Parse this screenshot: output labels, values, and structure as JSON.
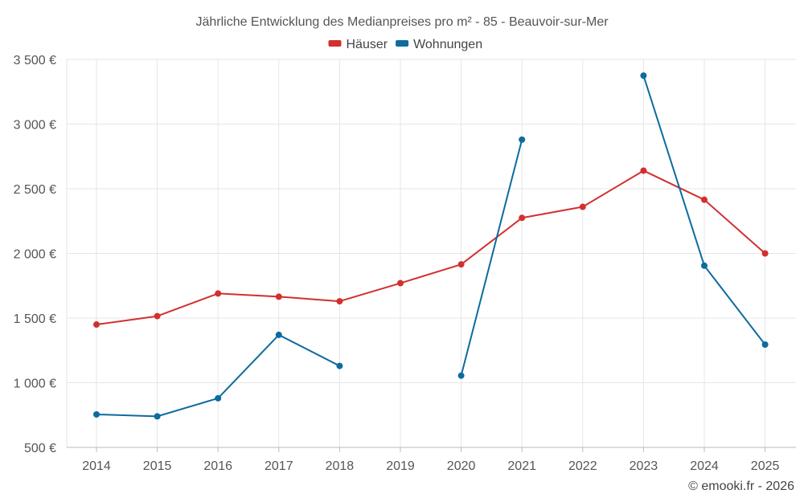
{
  "chart_data": {
    "type": "line",
    "title": "Jährliche Entwicklung des Medianpreises pro m² - 85 - Beauvoir-sur-Mer",
    "categories": [
      "2014",
      "2015",
      "2016",
      "2017",
      "2018",
      "2019",
      "2020",
      "2021",
      "2022",
      "2023",
      "2024",
      "2025"
    ],
    "ylim": [
      500,
      3500
    ],
    "yticks": [
      500,
      1000,
      1500,
      2000,
      2500,
      3000,
      3500
    ],
    "ytick_labels": [
      "500 €",
      "1 000 €",
      "1 500 €",
      "2 000 €",
      "2 500 €",
      "3 000 €",
      "3 500 €"
    ],
    "grid": true,
    "legend_position": "top-center",
    "xlabel": "",
    "ylabel": "",
    "series": [
      {
        "name": "Häuser",
        "color": "#d32f2f",
        "values": [
          1450,
          1515,
          1690,
          1665,
          1630,
          1770,
          1915,
          2275,
          2360,
          2640,
          2415,
          2000
        ]
      },
      {
        "name": "Wohnungen",
        "color": "#0d6b9e",
        "values": [
          755,
          740,
          880,
          1370,
          1130,
          null,
          1055,
          2880,
          null,
          3375,
          1905,
          1295
        ]
      }
    ]
  },
  "credit": "© emooki.fr - 2026"
}
